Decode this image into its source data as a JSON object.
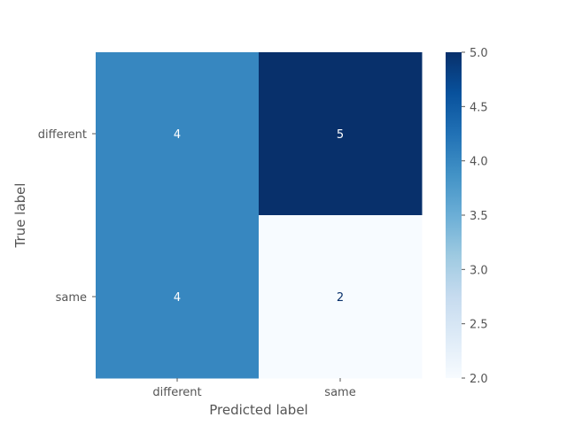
{
  "chart_data": {
    "type": "heatmap",
    "title": "",
    "xlabel": "Predicted label",
    "ylabel": "True label",
    "x_categories": [
      "different",
      "same"
    ],
    "y_categories": [
      "different",
      "same"
    ],
    "values": [
      [
        4,
        5
      ],
      [
        4,
        2
      ]
    ],
    "colormap": "Blues",
    "colorbar": {
      "range": [
        2.0,
        5.0
      ],
      "ticks": [
        "2.0",
        "2.5",
        "3.0",
        "3.5",
        "4.0",
        "4.5",
        "5.0"
      ]
    },
    "grid": false,
    "colors": {
      "cmap_low": "#f7fbff",
      "cmap_high": "#08306b",
      "text_on_dark": "#ffffff",
      "text_on_light": "#08306b"
    }
  }
}
